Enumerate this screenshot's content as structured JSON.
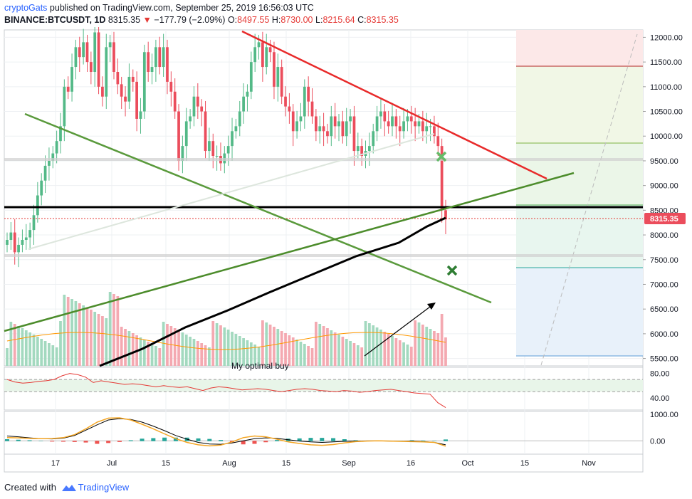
{
  "header": {
    "author": "cryptoGats",
    "published_text": "published on TradingView.com, September 25, 2019 16:56:03 UTC",
    "symbol": "BINANCE:BTCUSDT, 1D",
    "last_price": "8315.35",
    "change_arrow": "▼",
    "change": "−177.79 (−2.09%)",
    "open_label": "O:",
    "open": "8497.55",
    "high_label": "H:",
    "high": "8730.00",
    "low_label": "L:",
    "low": "8215.64",
    "close_label": "C:",
    "close": "8315.35"
  },
  "footer": {
    "created_with": "Created with",
    "brand": "TradingView"
  },
  "colors": {
    "up": "#53b987",
    "down": "#eb4d5c",
    "vol_up": "#a3d9bf",
    "vol_down": "#f4a9b1",
    "red_line": "#e82a2a",
    "green_line": "#5a9a3c",
    "black_line": "#000000",
    "price_tag": "#eb4d5c",
    "rsi": "#e53935",
    "macd": "#000000",
    "signal": "#f5a623"
  },
  "chart_data": {
    "type": "candlestick",
    "price_axis": {
      "ticks": [
        "12000.00",
        "11500.00",
        "11000.00",
        "10500.00",
        "10000.00",
        "9500.00",
        "9000.00",
        "8500.00",
        "8000.00",
        "7500.00",
        "7000.00",
        "6500.00",
        "6000.00",
        "5500.00"
      ],
      "ylim": [
        5350,
        12150
      ]
    },
    "rsi_axis": {
      "ticks": [
        "80.00",
        "40.00"
      ],
      "ylim": [
        20,
        90
      ]
    },
    "macd_axis": {
      "ticks": [
        "1000.00",
        "0.00"
      ],
      "ylim": [
        -500,
        1100
      ]
    },
    "x_ticks": [
      "17",
      "Jul",
      "15",
      "Aug",
      "15",
      "Sep",
      "16",
      "Oct",
      "15",
      "Nov"
    ],
    "current_price_label": "8315.35",
    "annotation": "My optimal buy",
    "close_series": [
      7900,
      8050,
      7650,
      7800,
      7900,
      7950,
      8100,
      8400,
      8800,
      9100,
      9400,
      9500,
      9650,
      9900,
      10200,
      11000,
      10900,
      11400,
      11800,
      11600,
      11900,
      11500,
      11300,
      12100,
      11000,
      10800,
      11800,
      11900,
      11300,
      11050,
      10800,
      10700,
      11200,
      11100,
      10350,
      10500,
      11700,
      11300,
      11400,
      11800,
      11400,
      11800,
      11100,
      10900,
      10500,
      9500,
      9800,
      10300,
      10400,
      10800,
      10600,
      10500,
      9700,
      9900,
      9600,
      9600,
      9450,
      9650,
      9800,
      10100,
      10200,
      10500,
      10800,
      10900,
      11500,
      11800,
      11900,
      11400,
      11800,
      11700,
      11000,
      11400,
      10800,
      10600,
      10500,
      10100,
      10300,
      10400,
      11000,
      10700,
      10400,
      10100,
      10200,
      10100,
      10000,
      10400,
      10200,
      10300,
      10000,
      10300,
      10400,
      9700,
      9800,
      9600,
      9700,
      9800,
      10100,
      10400,
      10500,
      10300,
      10200,
      10400,
      10200,
      10100,
      10300,
      10400,
      10300,
      10200,
      10300,
      10100,
      10200,
      10200,
      10000,
      9800,
      8500,
      8315
    ],
    "rsi_series": [
      70,
      66,
      64,
      65,
      67,
      68,
      70,
      76,
      80,
      78,
      74,
      65,
      68,
      66,
      64,
      62,
      63,
      62,
      60,
      58,
      60,
      58,
      57,
      58,
      55,
      52,
      56,
      58,
      57,
      55,
      53,
      54,
      55,
      54,
      52,
      50,
      52,
      54,
      55,
      54,
      52,
      51,
      50,
      52,
      51,
      49,
      50,
      52,
      53,
      54,
      52,
      50,
      48,
      47,
      46,
      32,
      24
    ],
    "macd_series": [
      180,
      150,
      110,
      80,
      70,
      100,
      200,
      400,
      600,
      780,
      830,
      800,
      700,
      550,
      380,
      200,
      60,
      -60,
      -120,
      -130,
      -80,
      0,
      80,
      110,
      90,
      40,
      -10,
      -40,
      -60,
      -40,
      -20,
      -10,
      -5,
      -5,
      -10,
      -20,
      -10,
      -30,
      -60,
      -150
    ],
    "signal_series": [
      120,
      110,
      90,
      80,
      85,
      120,
      230,
      450,
      700,
      850,
      860,
      780,
      620,
      450,
      260,
      80,
      -60,
      -150,
      -190,
      -160,
      -40,
      120,
      180,
      150,
      60,
      -40,
      -100,
      -150,
      -170,
      -140,
      -80,
      -30,
      -10,
      0,
      -10,
      -20,
      -30,
      -40,
      -60,
      -200
    ]
  }
}
